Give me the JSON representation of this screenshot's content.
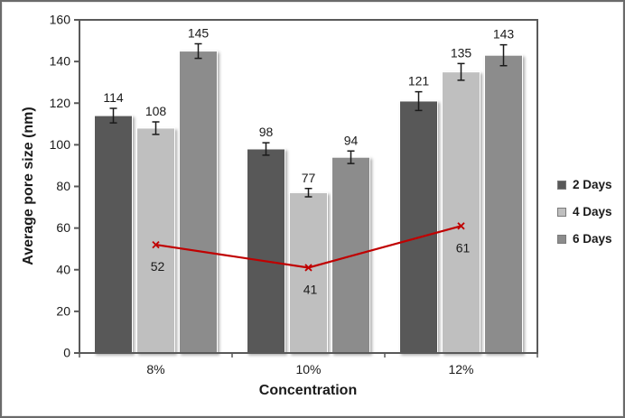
{
  "window": {
    "background_color": "#ffffff",
    "frame_color": "#6b6b6b"
  },
  "chart_data": {
    "type": "bar",
    "title": "",
    "xlabel": "Concentration",
    "ylabel": "Average pore size (nm)",
    "categories": [
      "8%",
      "10%",
      "12%"
    ],
    "series": [
      {
        "name": "2 Days",
        "color": "#595959",
        "values": [
          114,
          98,
          121
        ],
        "errors": [
          3.5,
          3,
          4.5
        ]
      },
      {
        "name": "4 Days",
        "color": "#bfbfbf",
        "values": [
          108,
          77,
          135
        ],
        "errors": [
          3,
          2,
          4
        ]
      },
      {
        "name": "6 Days",
        "color": "#8c8c8c",
        "values": [
          145,
          94,
          143
        ],
        "errors": [
          3.5,
          3,
          5
        ]
      }
    ],
    "line_overlay": {
      "values": [
        52,
        41,
        61
      ],
      "color": "#c00000",
      "marker": "x",
      "in_legend": false,
      "data_labels_position": "below"
    },
    "data_labels": true,
    "error_bars": true,
    "ylim": [
      0,
      160
    ],
    "yticks": [
      0,
      20,
      40,
      60,
      80,
      100,
      120,
      140,
      160
    ],
    "grid": false,
    "legend_position": "right",
    "plot_border": true,
    "axis_color": "#595959",
    "text_color": "#1a1a1a",
    "error_bar_color": "#1a1a1a"
  }
}
